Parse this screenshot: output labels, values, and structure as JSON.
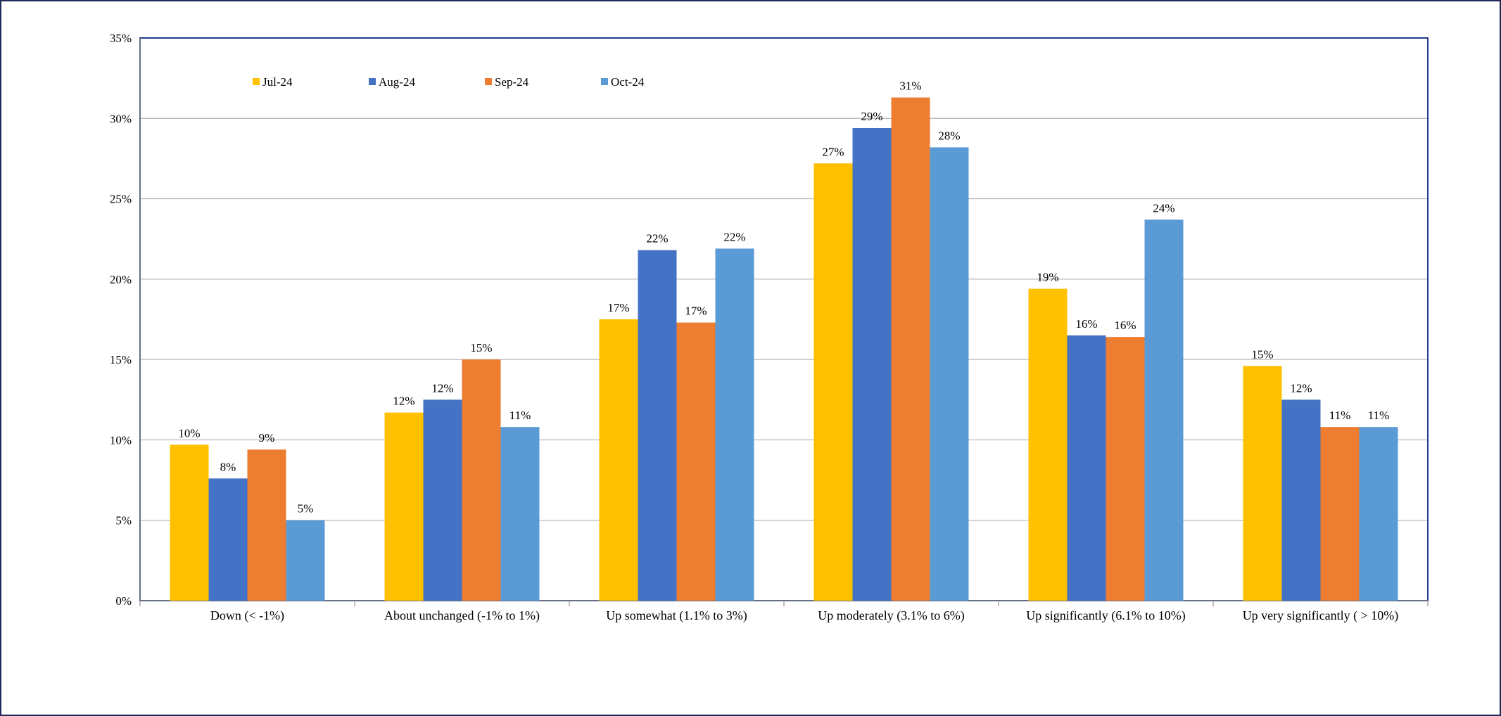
{
  "chart_data": {
    "type": "bar",
    "title": "",
    "xlabel": "",
    "ylabel": "",
    "ylim": [
      0,
      35
    ],
    "yticks": [
      0,
      5,
      10,
      15,
      20,
      25,
      30,
      35
    ],
    "ytick_labels": [
      "0%",
      "5%",
      "10%",
      "15%",
      "20%",
      "25%",
      "30%",
      "35%"
    ],
    "grid": true,
    "legend_position": "top-left",
    "categories": [
      "Down (< -1%)",
      "About unchanged (-1% to 1%)",
      "Up somewhat (1.1% to 3%)",
      "Up moderately (3.1% to 6%)",
      "Up significantly (6.1% to 10%)",
      "Up very significantly ( > 10%)"
    ],
    "series": [
      {
        "name": "Jul-24",
        "color": "#FFC000",
        "values": [
          9.7,
          11.7,
          17.5,
          27.2,
          19.4,
          14.6
        ],
        "labels": [
          "10%",
          "12%",
          "17%",
          "27%",
          "19%",
          "15%"
        ]
      },
      {
        "name": "Aug-24",
        "color": "#4472C4",
        "values": [
          7.6,
          12.5,
          21.8,
          29.4,
          16.5,
          12.5
        ],
        "labels": [
          "8%",
          "12%",
          "22%",
          "29%",
          "16%",
          "12%"
        ]
      },
      {
        "name": "Sep-24",
        "color": "#ED7D31",
        "values": [
          9.4,
          15.0,
          17.3,
          31.3,
          16.4,
          10.8
        ],
        "labels": [
          "9%",
          "15%",
          "17%",
          "31%",
          "16%",
          "11%"
        ]
      },
      {
        "name": "Oct-24",
        "color": "#5B9BD5",
        "values": [
          5.0,
          10.8,
          21.9,
          28.2,
          23.7,
          10.8
        ],
        "labels": [
          "5%",
          "11%",
          "22%",
          "28%",
          "24%",
          "11%"
        ]
      }
    ]
  }
}
